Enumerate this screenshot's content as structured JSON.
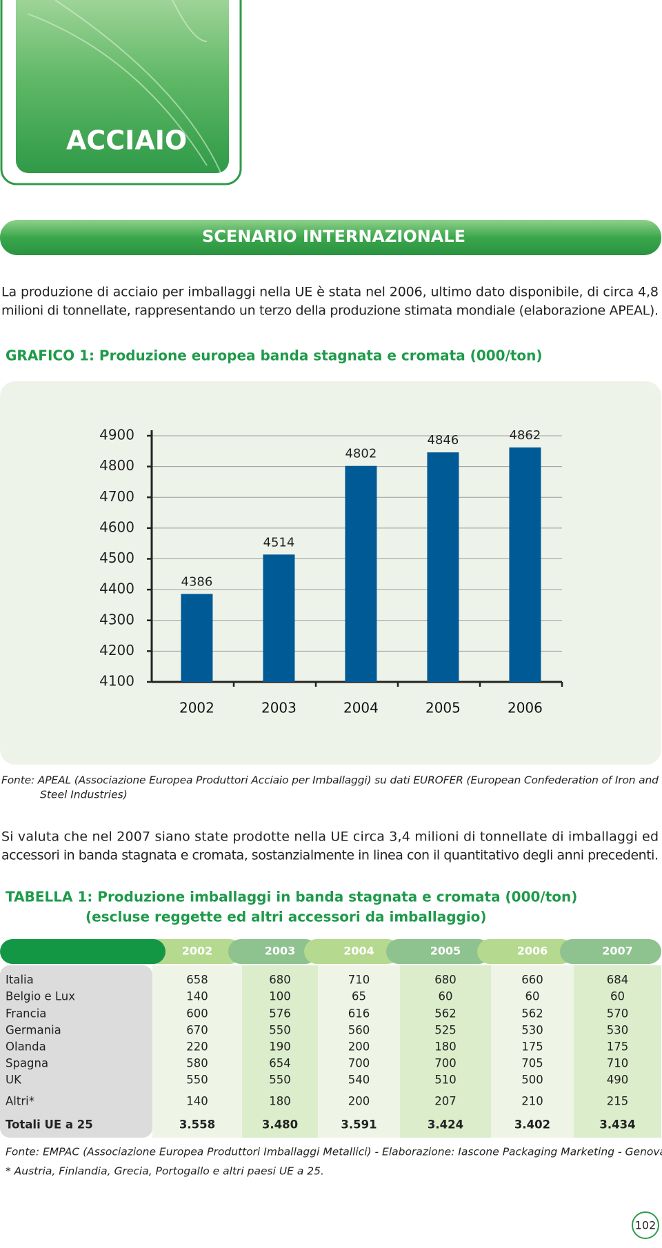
{
  "header": {
    "title": "ACCIAIO"
  },
  "section": {
    "title": "SCENARIO INTERNAZIONALE"
  },
  "intro": {
    "lines": [
      "La produzione di acciaio per imballaggi nella UE è stata nel 2006, ultimo dato disponibile, di circa  4,8",
      "milioni di tonnellate, rappresentando un terzo della produzione stimata mondiale (elaborazione APEAL)."
    ]
  },
  "chart_data": {
    "type": "bar",
    "title": "GRAFICO 1: Produzione europea banda stagnata e cromata (000/ton)",
    "categories": [
      "2002",
      "2003",
      "2004",
      "2005",
      "2006"
    ],
    "values": [
      4386,
      4514,
      4802,
      4846,
      4862
    ],
    "color": "#005a96",
    "ylim": [
      4100,
      4900
    ],
    "yticks": [
      4100,
      4200,
      4300,
      4400,
      4500,
      4600,
      4700,
      4800,
      4900
    ],
    "grid": true
  },
  "chart_source": {
    "lines": [
      "Fonte: APEAL (Associazione Europea Produttori Acciaio per Imballaggi) su dati EUROFER (European Confederation of Iron and",
      "Steel Industries)"
    ]
  },
  "text2": {
    "lines": [
      "Si valuta che nel 2007 siano state prodotte nella UE circa 3,4 milioni di tonnellate di imballaggi ed",
      "accessori in banda stagnata e cromata, sostanzialmente in linea con il quantitativo degli anni precedenti."
    ]
  },
  "table": {
    "title": [
      "TABELLA 1: Produzione imballaggi in banda stagnata e cromata (000/ton)",
      "(escluse reggette ed altri accessori da imballaggio)"
    ],
    "columns": [
      "2002",
      "2003",
      "2004",
      "2005",
      "2006",
      "2007"
    ],
    "rows": [
      {
        "label": "Italia",
        "values": [
          658,
          680,
          710,
          680,
          660,
          684
        ]
      },
      {
        "label": "Belgio e Lux",
        "values": [
          140,
          100,
          65,
          60,
          60,
          60
        ]
      },
      {
        "label": "Francia",
        "values": [
          600,
          576,
          616,
          562,
          562,
          570
        ]
      },
      {
        "label": "Germania",
        "values": [
          670,
          550,
          560,
          525,
          530,
          530
        ]
      },
      {
        "label": "Olanda",
        "values": [
          220,
          190,
          200,
          180,
          175,
          175
        ]
      },
      {
        "label": "Spagna",
        "values": [
          580,
          654,
          700,
          700,
          705,
          710
        ]
      },
      {
        "label": "UK",
        "values": [
          550,
          550,
          540,
          510,
          500,
          490
        ]
      },
      {
        "label": "Altri*",
        "values": [
          140,
          180,
          200,
          207,
          210,
          215
        ]
      },
      {
        "label": "Totali UE a 25",
        "values": [
          "3.558",
          "3.480",
          "3.591",
          "3.424",
          "3.402",
          "3.434"
        ]
      }
    ],
    "source": "Fonte: EMPAC (Associazione Europea Produttori Imballaggi Metallici) - Elaborazione: Iascone Packaging Marketing - Genova",
    "note": "* Austria, Finlandia, Grecia, Portogallo e altri paesi UE a 25."
  },
  "page_number": "102"
}
